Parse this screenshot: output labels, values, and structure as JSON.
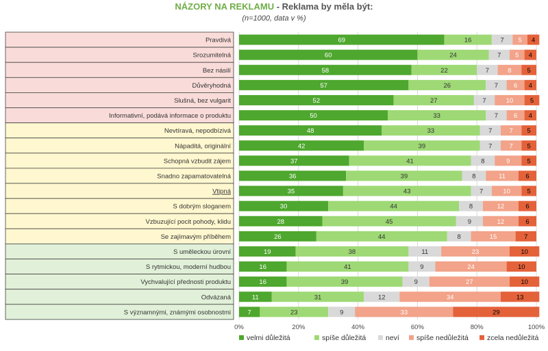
{
  "title_main": "NÁZORY NA REKLAMU",
  "title_rest": " - Reklama by měla být:",
  "subtitle": "(n=1000, data v %)",
  "chart_data": {
    "type": "bar",
    "orientation": "horizontal",
    "stacked": true,
    "xlim": [
      0,
      100
    ],
    "x_ticks": [
      "0%",
      "20%",
      "40%",
      "60%",
      "80%",
      "100%"
    ],
    "grid": true,
    "legend_position": "bottom",
    "categories": [
      "Pravdivá",
      "Srozumitelná",
      "Bez násilí",
      "Důvěryhodná",
      "Slušná, bez vulgarit",
      "Informativní, podává informace o produktu",
      "Nevtíravá, nepodbízivá",
      "Nápaditá, originální",
      "Schopná vzbudit zájem",
      "Snadno zapamatovatelná",
      "Vtipná",
      "S dobrým sloganem",
      "Vzbuzující pocit pohody, klidu",
      "Se zajímavým příběhem",
      "S uměleckou úrovní",
      "S rytmickou, moderní hudbou",
      "Vychvalující přednosti  produktu",
      "Odvázaná",
      "S významnými, známými osobnostmi"
    ],
    "category_groups": [
      1,
      1,
      1,
      1,
      1,
      1,
      2,
      2,
      2,
      2,
      2,
      2,
      2,
      2,
      3,
      3,
      3,
      3,
      3
    ],
    "group_colors": {
      "1": "#f9dcd9",
      "2": "#fff7cf",
      "3": "#e1f0d8"
    },
    "series": [
      {
        "name": "velmi důležitá",
        "color": "#4ea72e",
        "label_color": "#ffffff",
        "values": [
          69,
          60,
          58,
          57,
          52,
          50,
          48,
          42,
          37,
          36,
          35,
          30,
          28,
          26,
          19,
          16,
          16,
          11,
          7
        ]
      },
      {
        "name": "spíše důležitá",
        "color": "#9ed975",
        "label_color": "#333333",
        "values": [
          16,
          24,
          22,
          26,
          27,
          33,
          33,
          39,
          41,
          39,
          43,
          44,
          45,
          44,
          38,
          41,
          39,
          31,
          23
        ]
      },
      {
        "name": "neví",
        "color": "#d9d9d9",
        "label_color": "#333333",
        "values": [
          7,
          7,
          7,
          7,
          7,
          7,
          7,
          7,
          8,
          8,
          7,
          8,
          9,
          8,
          11,
          9,
          9,
          12,
          9
        ]
      },
      {
        "name": "spíše nedůležitá",
        "color": "#f2a389",
        "label_color": "#ffffff",
        "values": [
          5,
          5,
          8,
          6,
          10,
          6,
          7,
          7,
          9,
          11,
          10,
          12,
          12,
          15,
          23,
          24,
          27,
          34,
          33
        ]
      },
      {
        "name": "zcela nedůležitá",
        "color": "#e4623a",
        "label_color": "#000000",
        "values": [
          4,
          4,
          5,
          4,
          5,
          4,
          5,
          5,
          5,
          6,
          5,
          6,
          6,
          7,
          10,
          10,
          10,
          13,
          29
        ]
      }
    ]
  }
}
